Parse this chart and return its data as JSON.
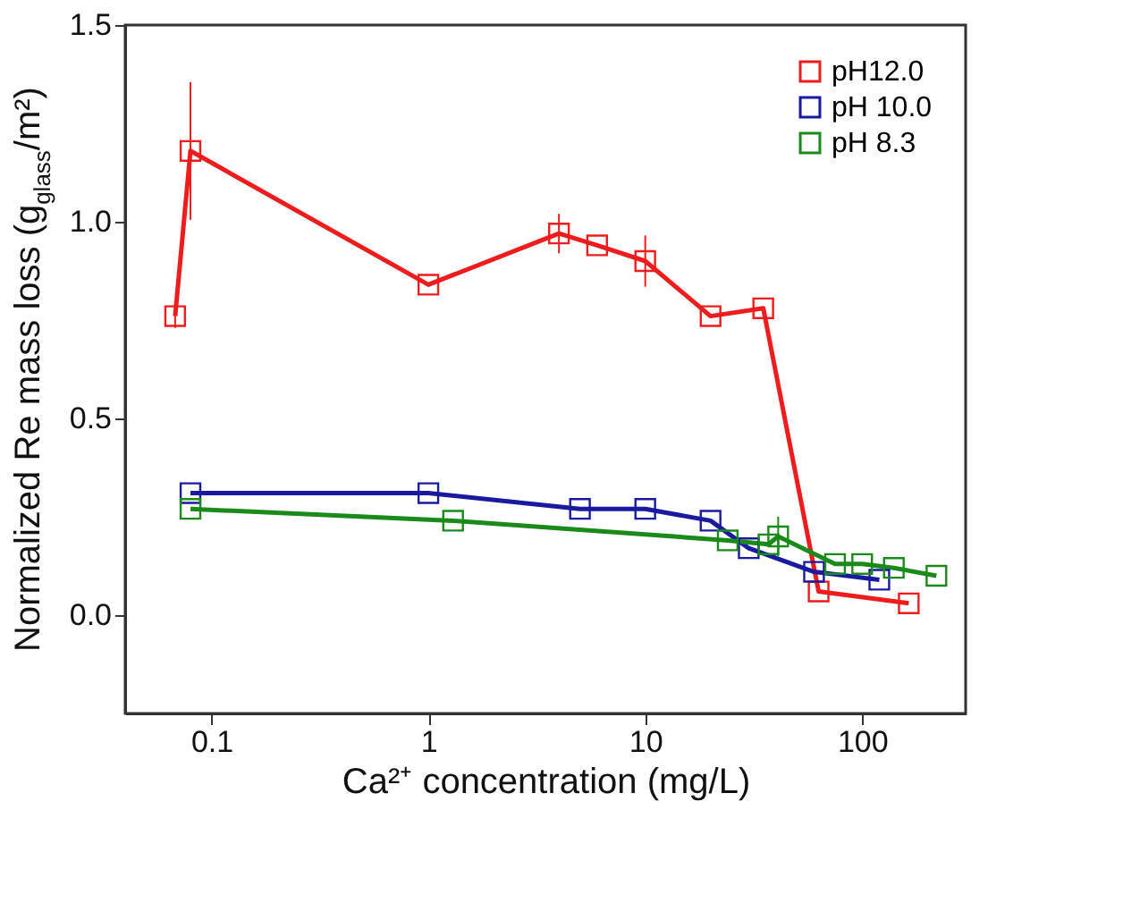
{
  "chart_data": {
    "type": "line",
    "xlabel": "Ca²⁺ concentration (mg/L)",
    "ylabel": "Normalized Re mass loss (g$_{glass}$/m²)",
    "log": "x",
    "xlim": [
      0.04,
      300
    ],
    "xticks": [
      0.1,
      1,
      10,
      100
    ],
    "ylim": [
      -0.25,
      1.5
    ],
    "yticks": [
      {
        "value": 0,
        "label": "0.0"
      },
      0.5,
      {
        "value": 1,
        "label": "1.0"
      },
      1.5
    ],
    "marker": "square",
    "legend": "top right",
    "grid": false,
    "series": [
      {
        "name": "pH12.0",
        "color": "#ee1c1c",
        "x": [
          0.068,
          0.08,
          1,
          4,
          6,
          10,
          20,
          35,
          63,
          164
        ],
        "values": [
          0.76,
          1.18,
          0.84,
          0.97,
          0.94,
          0.9,
          0.76,
          0.78,
          0.06,
          0.03
        ],
        "errors": [
          0.03,
          0.175,
          null,
          0.05,
          null,
          0.065,
          null,
          null,
          null,
          null
        ]
      },
      {
        "name": "pH 10.0",
        "color": "#1a1aa0",
        "x": [
          0.08,
          1,
          5,
          10,
          20,
          30,
          60,
          120
        ],
        "values": [
          0.31,
          0.31,
          0.27,
          0.27,
          0.24,
          0.17,
          0.11,
          0.09
        ]
      },
      {
        "name": "pH 8.3",
        "color": "#1a8a1a",
        "x": [
          0.08,
          1.3,
          24,
          37,
          41,
          75,
          100,
          140,
          220
        ],
        "values": [
          0.27,
          0.24,
          0.19,
          0.18,
          0.2,
          0.13,
          0.13,
          0.12,
          0.1
        ],
        "errors": [
          null,
          null,
          null,
          null,
          0.05,
          null,
          null,
          null,
          null
        ]
      }
    ]
  }
}
